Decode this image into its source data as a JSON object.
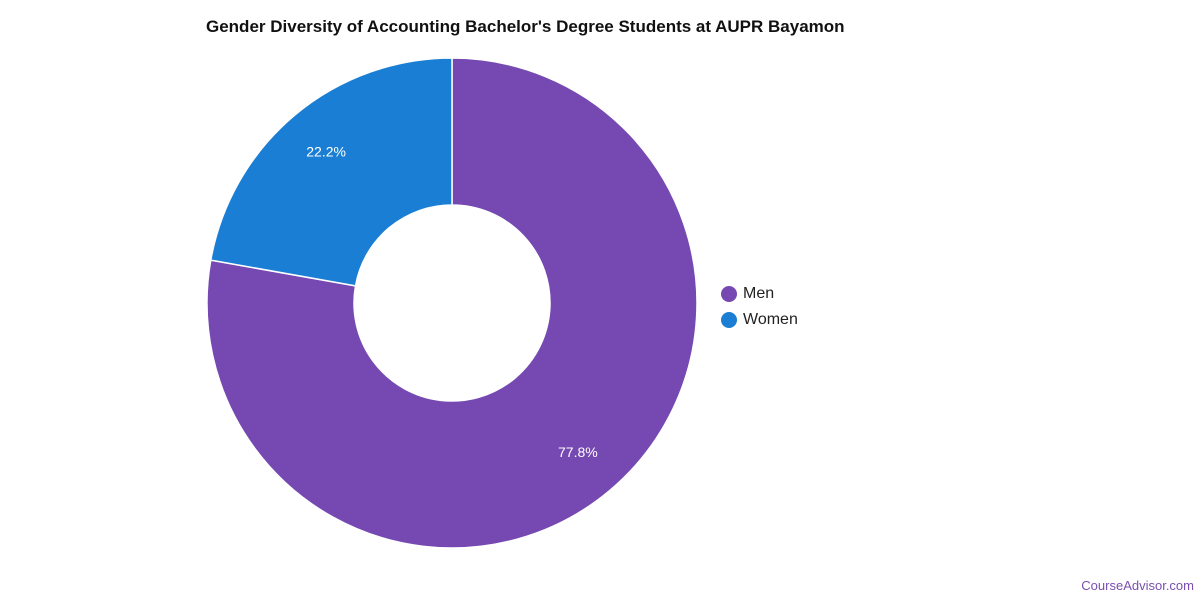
{
  "chart_data": {
    "type": "pie",
    "title": "Gender Diversity of Accounting Bachelor's Degree Students at AUPR Bayamon",
    "donut": true,
    "categories": [
      "Men",
      "Women"
    ],
    "values": [
      77.8,
      22.2
    ],
    "value_labels": [
      "77.8%",
      "22.2%"
    ],
    "colors": [
      "#7549b1",
      "#1a7ed4"
    ],
    "legend_position": "right"
  },
  "watermark": "CourseAdvisor.com"
}
